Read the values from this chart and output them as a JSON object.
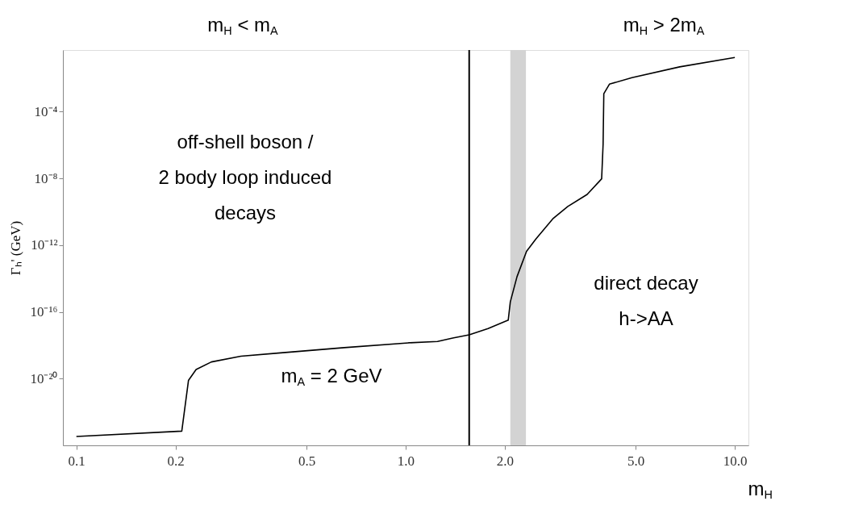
{
  "chart_data": {
    "type": "line",
    "xlabel": "m$_{H}$",
    "ylabel": "Γₕ' (GeV)",
    "log": "xy",
    "grid": false,
    "marker": "none",
    "line_style": "solid",
    "xlim": [
      0.091,
      11
    ],
    "ylim": [
      1e-24,
      0.5
    ],
    "xticks": [
      0.1,
      0.2,
      0.5,
      {
        "value": 1,
        "label": "1.0"
      },
      {
        "value": 2,
        "label": "2.0"
      },
      {
        "value": 5,
        "label": "5.0"
      },
      {
        "value": 10,
        "label": "10.0"
      }
    ],
    "yticks": [
      {
        "value": 1e-20,
        "label": "10⁻²⁰"
      },
      {
        "value": 1e-16,
        "label": "10⁻¹⁶"
      },
      {
        "value": 1e-12,
        "label": "10⁻¹²"
      },
      {
        "value": 1e-08,
        "label": "10⁻⁸"
      },
      {
        "value": 0.0001,
        "label": "10⁻⁴"
      }
    ],
    "x": [
      0.1,
      0.209,
      0.219,
      0.231,
      0.257,
      0.316,
      0.417,
      0.651,
      1.02,
      1.25,
      1.39,
      1.56,
      1.78,
      2.05,
      2.08,
      2.18,
      2.33,
      2.49,
      2.81,
      3.11,
      3.56,
      3.94,
      3.98,
      4.0,
      4.16,
      4.87,
      6.8,
      10
    ],
    "series": [
      {
        "color": "#000000",
        "values": [
          3.4e-24,
          7.1e-24,
          7.8e-21,
          3.5e-20,
          1e-19,
          2.2e-19,
          3.5e-19,
          7.2e-19,
          1.4e-18,
          1.7e-18,
          2.7e-18,
          4.2e-18,
          1e-17,
          3.2e-17,
          4e-16,
          1.3e-14,
          4.3e-13,
          2.4e-12,
          4.1e-11,
          2.1e-10,
          1.1e-09,
          9.5e-09,
          1.1e-06,
          0.0012,
          0.0045,
          0.011,
          0.049,
          0.18
        ]
      }
    ],
    "ref_lines": [
      {
        "axis": "x",
        "value": 1.56,
        "color": "#000000"
      }
    ],
    "bands": [
      {
        "axis": "x",
        "from": 2.08,
        "to": 2.32,
        "color": "#d3d3d3"
      }
    ],
    "annotations": [
      "m$_{H}$ < m$_{A}$",
      "m$_{H}$ > 2m$_{A}$",
      "off-shell boson /\n2 body loop induced\ndecays",
      "m$_{A}$ = 2 GeV",
      "direct decay\nh->AA"
    ]
  }
}
